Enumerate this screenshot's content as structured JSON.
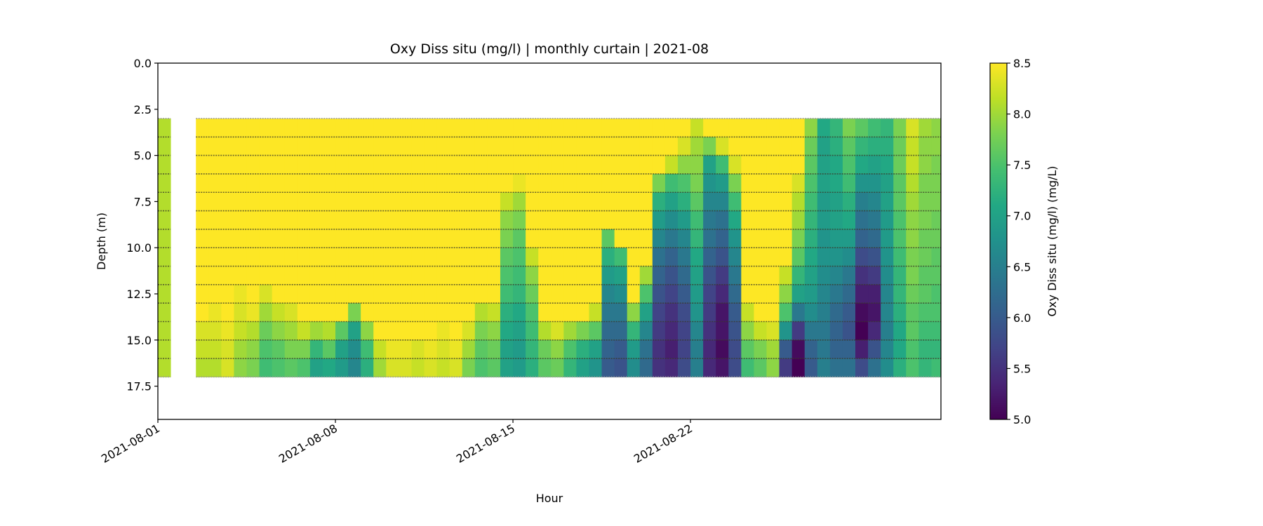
{
  "chart_data": {
    "type": "heatmap",
    "title": "Oxy Diss situ (mg/l) | monthly curtain | 2021-08",
    "xlabel": "Hour",
    "ylabel": "Depth (m)",
    "colorbar_label": "Oxy Diss situ (mg/l) (mg/L)",
    "colormap": "viridis",
    "clim": [
      5.0,
      8.5
    ],
    "xlim": [
      "2021-08-01 00:00",
      "2021-08-31 21:00"
    ],
    "ylim": [
      19.3,
      0.0
    ],
    "y_inverted": true,
    "grid": false,
    "x_ticks": [
      "2021-08-01",
      "2021-08-08",
      "2021-08-15",
      "2021-08-22"
    ],
    "y_ticks": [
      "0.0",
      "2.5",
      "5.0",
      "7.5",
      "10.0",
      "12.5",
      "15.0",
      "17.5"
    ],
    "colorbar_ticks": [
      "5.0",
      "5.5",
      "6.0",
      "6.5",
      "7.0",
      "7.5",
      "8.0",
      "8.5"
    ],
    "sample_depths": [
      3,
      4,
      5,
      6,
      7,
      8,
      9,
      10,
      11,
      12,
      13,
      14,
      15,
      16,
      17
    ],
    "depths": [
      3,
      4,
      5,
      6,
      7,
      8,
      9,
      10,
      11,
      12,
      13,
      14,
      15,
      16
    ],
    "times": [
      "2021-08-01 00:00",
      "2021-08-01 12:00",
      "2021-08-02 00:00",
      "2021-08-02 12:00",
      "2021-08-03 00:00",
      "2021-08-03 12:00",
      "2021-08-04 00:00",
      "2021-08-04 12:00",
      "2021-08-05 00:00",
      "2021-08-05 12:00",
      "2021-08-06 00:00",
      "2021-08-06 12:00",
      "2021-08-07 00:00",
      "2021-08-07 12:00",
      "2021-08-08 00:00",
      "2021-08-08 12:00",
      "2021-08-09 00:00",
      "2021-08-09 12:00",
      "2021-08-10 00:00",
      "2021-08-10 12:00",
      "2021-08-11 00:00",
      "2021-08-11 12:00",
      "2021-08-12 00:00",
      "2021-08-12 12:00",
      "2021-08-13 00:00",
      "2021-08-13 12:00",
      "2021-08-14 00:00",
      "2021-08-14 12:00",
      "2021-08-15 00:00",
      "2021-08-15 12:00",
      "2021-08-16 00:00",
      "2021-08-16 12:00",
      "2021-08-17 00:00",
      "2021-08-17 12:00",
      "2021-08-18 00:00",
      "2021-08-18 12:00",
      "2021-08-19 00:00",
      "2021-08-19 12:00",
      "2021-08-20 00:00",
      "2021-08-20 12:00",
      "2021-08-21 00:00",
      "2021-08-21 12:00",
      "2021-08-22 00:00",
      "2021-08-22 12:00",
      "2021-08-23 00:00",
      "2021-08-23 12:00",
      "2021-08-24 00:00",
      "2021-08-24 12:00",
      "2021-08-25 00:00",
      "2021-08-25 12:00",
      "2021-08-26 00:00",
      "2021-08-26 12:00",
      "2021-08-27 00:00",
      "2021-08-27 12:00",
      "2021-08-28 00:00",
      "2021-08-28 12:00",
      "2021-08-29 00:00",
      "2021-08-29 12:00",
      "2021-08-30 00:00",
      "2021-08-30 12:00",
      "2021-08-31 00:00",
      "2021-08-31 12:00"
    ],
    "values": [
      [
        8.1,
        8.1,
        8.1,
        8.1,
        8.1,
        8.1,
        8.1,
        8.1,
        8.1,
        8.1,
        8.1,
        8.1,
        8.1,
        8.1
      ],
      null,
      null,
      [
        8.5,
        8.5,
        8.5,
        8.5,
        8.5,
        8.5,
        8.5,
        8.5,
        8.5,
        8.5,
        8.5,
        8.3,
        8.2,
        8.1
      ],
      [
        8.5,
        8.5,
        8.5,
        8.5,
        8.5,
        8.5,
        8.5,
        8.5,
        8.5,
        8.5,
        8.4,
        8.3,
        8.2,
        8.1
      ],
      [
        8.5,
        8.5,
        8.5,
        8.5,
        8.5,
        8.5,
        8.5,
        8.5,
        8.5,
        8.5,
        8.5,
        8.4,
        8.3,
        8.3
      ],
      [
        8.5,
        8.5,
        8.5,
        8.5,
        8.5,
        8.5,
        8.5,
        8.5,
        8.5,
        8.4,
        8.3,
        8.2,
        8.0,
        7.9
      ],
      [
        8.5,
        8.5,
        8.5,
        8.5,
        8.5,
        8.5,
        8.5,
        8.5,
        8.5,
        8.5,
        8.4,
        8.1,
        7.9,
        7.8
      ],
      [
        8.5,
        8.5,
        8.5,
        8.5,
        8.5,
        8.5,
        8.5,
        8.5,
        8.5,
        8.3,
        8.0,
        7.7,
        7.5,
        7.4
      ],
      [
        8.5,
        8.5,
        8.5,
        8.5,
        8.5,
        8.5,
        8.5,
        8.5,
        8.5,
        8.5,
        8.2,
        7.9,
        7.6,
        7.5
      ],
      [
        8.5,
        8.5,
        8.5,
        8.5,
        8.5,
        8.5,
        8.5,
        8.5,
        8.5,
        8.5,
        8.3,
        8.0,
        7.8,
        7.6
      ],
      [
        8.5,
        8.5,
        8.5,
        8.5,
        8.5,
        8.5,
        8.5,
        8.5,
        8.5,
        8.5,
        8.5,
        8.2,
        7.8,
        7.5
      ],
      [
        8.5,
        8.5,
        8.5,
        8.5,
        8.5,
        8.5,
        8.5,
        8.5,
        8.5,
        8.5,
        8.5,
        8.0,
        7.3,
        7.0
      ],
      [
        8.5,
        8.5,
        8.5,
        8.5,
        8.5,
        8.5,
        8.5,
        8.5,
        8.5,
        8.5,
        8.5,
        8.1,
        7.6,
        7.1
      ],
      [
        8.5,
        8.5,
        8.5,
        8.5,
        8.5,
        8.5,
        8.5,
        8.5,
        8.5,
        8.5,
        8.5,
        7.6,
        7.0,
        6.9
      ],
      [
        8.5,
        8.5,
        8.5,
        8.5,
        8.5,
        8.5,
        8.5,
        8.5,
        8.5,
        8.5,
        7.8,
        7.0,
        6.7,
        6.6
      ],
      [
        8.5,
        8.5,
        8.5,
        8.5,
        8.5,
        8.5,
        8.5,
        8.5,
        8.5,
        8.5,
        8.5,
        7.9,
        7.4,
        7.2
      ],
      [
        8.5,
        8.5,
        8.5,
        8.5,
        8.5,
        8.5,
        8.5,
        8.5,
        8.5,
        8.5,
        8.5,
        8.5,
        8.2,
        8.0
      ],
      [
        8.5,
        8.5,
        8.5,
        8.5,
        8.5,
        8.5,
        8.5,
        8.5,
        8.5,
        8.5,
        8.5,
        8.5,
        8.4,
        8.3
      ],
      [
        8.5,
        8.5,
        8.5,
        8.5,
        8.5,
        8.5,
        8.5,
        8.5,
        8.5,
        8.5,
        8.5,
        8.5,
        8.4,
        8.3
      ],
      [
        8.5,
        8.5,
        8.5,
        8.5,
        8.5,
        8.5,
        8.5,
        8.5,
        8.5,
        8.5,
        8.5,
        8.5,
        8.3,
        8.2
      ],
      [
        8.5,
        8.5,
        8.5,
        8.5,
        8.5,
        8.5,
        8.5,
        8.5,
        8.5,
        8.5,
        8.5,
        8.5,
        8.4,
        8.3
      ],
      [
        8.5,
        8.5,
        8.5,
        8.5,
        8.5,
        8.5,
        8.5,
        8.5,
        8.5,
        8.5,
        8.5,
        8.4,
        8.3,
        8.2
      ],
      [
        8.5,
        8.5,
        8.5,
        8.5,
        8.5,
        8.5,
        8.5,
        8.5,
        8.5,
        8.5,
        8.5,
        8.5,
        8.4,
        8.3
      ],
      [
        8.5,
        8.5,
        8.5,
        8.5,
        8.5,
        8.5,
        8.5,
        8.5,
        8.5,
        8.5,
        8.5,
        8.3,
        8.0,
        7.8
      ],
      [
        8.5,
        8.5,
        8.5,
        8.5,
        8.5,
        8.5,
        8.5,
        8.5,
        8.5,
        8.5,
        8.1,
        7.8,
        7.6,
        7.5
      ],
      [
        8.5,
        8.5,
        8.5,
        8.5,
        8.5,
        8.5,
        8.5,
        8.5,
        8.5,
        8.5,
        8.2,
        7.9,
        7.7,
        7.6
      ],
      [
        8.5,
        8.5,
        8.5,
        8.5,
        8.2,
        7.9,
        7.8,
        7.6,
        7.5,
        7.4,
        7.2,
        7.1,
        7.0,
        7.0
      ],
      [
        8.5,
        8.5,
        8.5,
        8.4,
        8.0,
        7.8,
        7.6,
        7.5,
        7.4,
        7.3,
        7.1,
        7.0,
        6.9,
        6.9
      ],
      [
        8.5,
        8.5,
        8.5,
        8.5,
        8.5,
        8.5,
        8.5,
        8.2,
        7.9,
        7.7,
        7.5,
        7.4,
        7.3,
        7.2
      ],
      [
        8.5,
        8.5,
        8.5,
        8.5,
        8.5,
        8.5,
        8.5,
        8.5,
        8.5,
        8.5,
        8.5,
        8.1,
        7.7,
        7.6
      ],
      [
        8.5,
        8.5,
        8.5,
        8.5,
        8.5,
        8.5,
        8.5,
        8.5,
        8.5,
        8.5,
        8.5,
        8.3,
        7.9,
        7.7
      ],
      [
        8.5,
        8.5,
        8.5,
        8.5,
        8.5,
        8.5,
        8.5,
        8.5,
        8.5,
        8.5,
        8.5,
        8.0,
        7.5,
        7.3
      ],
      [
        8.5,
        8.5,
        8.5,
        8.5,
        8.5,
        8.5,
        8.5,
        8.5,
        8.5,
        8.5,
        8.5,
        7.8,
        7.2,
        7.0
      ],
      [
        8.5,
        8.5,
        8.5,
        8.5,
        8.5,
        8.5,
        8.5,
        8.5,
        8.5,
        8.5,
        8.2,
        7.6,
        7.0,
        6.8
      ],
      [
        8.5,
        8.5,
        8.5,
        8.5,
        8.5,
        8.5,
        7.6,
        7.2,
        6.9,
        6.6,
        6.4,
        6.2,
        6.1,
        6.0
      ],
      [
        8.5,
        8.5,
        8.5,
        8.5,
        8.5,
        8.5,
        8.5,
        7.4,
        7.0,
        6.7,
        6.4,
        6.2,
        6.0,
        5.9
      ],
      [
        8.5,
        8.5,
        8.5,
        8.5,
        8.5,
        8.5,
        8.5,
        8.5,
        8.5,
        8.5,
        7.9,
        7.3,
        6.9,
        6.7
      ],
      [
        8.5,
        8.5,
        8.5,
        8.5,
        8.5,
        8.5,
        8.5,
        8.5,
        8.0,
        7.5,
        7.0,
        6.6,
        6.3,
        6.2
      ],
      [
        8.5,
        8.5,
        8.5,
        7.8,
        7.2,
        6.9,
        6.6,
        6.3,
        6.1,
        5.9,
        5.7,
        5.6,
        5.5,
        5.5
      ],
      [
        8.5,
        8.5,
        8.2,
        7.4,
        7.0,
        6.7,
        6.4,
        6.1,
        5.9,
        5.7,
        5.5,
        5.4,
        5.3,
        5.4
      ],
      [
        8.5,
        8.3,
        7.9,
        7.5,
        7.2,
        6.9,
        6.6,
        6.4,
        6.2,
        6.0,
        5.8,
        5.7,
        5.7,
        5.8
      ],
      [
        8.2,
        8.0,
        7.9,
        7.8,
        7.6,
        7.4,
        7.3,
        7.1,
        7.0,
        6.9,
        6.8,
        6.6,
        6.5,
        6.5
      ],
      [
        8.5,
        7.8,
        7.0,
        6.8,
        6.6,
        6.4,
        6.3,
        6.1,
        5.9,
        5.7,
        5.6,
        5.5,
        5.4,
        5.4
      ],
      [
        8.5,
        8.3,
        7.4,
        6.9,
        6.6,
        6.3,
        6.1,
        5.9,
        5.6,
        5.4,
        5.2,
        5.2,
        5.1,
        5.2
      ],
      [
        8.5,
        8.5,
        8.3,
        7.8,
        7.4,
        7.1,
        6.8,
        6.6,
        6.4,
        6.2,
        6.0,
        5.9,
        5.8,
        5.8
      ],
      [
        8.5,
        8.5,
        8.5,
        8.5,
        8.5,
        8.5,
        8.5,
        8.5,
        8.5,
        8.5,
        8.2,
        7.9,
        7.6,
        7.4
      ],
      [
        8.5,
        8.5,
        8.5,
        8.5,
        8.5,
        8.5,
        8.5,
        8.5,
        8.5,
        8.5,
        8.5,
        8.2,
        7.8,
        7.6
      ],
      [
        8.5,
        8.5,
        8.5,
        8.5,
        8.5,
        8.5,
        8.5,
        8.5,
        8.5,
        8.5,
        8.5,
        8.3,
        8.0,
        7.9
      ],
      [
        8.5,
        8.5,
        8.5,
        8.5,
        8.5,
        8.5,
        8.5,
        8.5,
        8.2,
        7.9,
        7.5,
        6.8,
        6.0,
        5.6
      ],
      [
        8.5,
        8.5,
        8.5,
        8.3,
        8.1,
        8.0,
        7.8,
        7.6,
        7.3,
        7.0,
        6.4,
        5.6,
        5.1,
        5.0
      ],
      [
        7.9,
        7.7,
        7.6,
        7.5,
        7.4,
        7.3,
        7.2,
        7.1,
        7.0,
        6.9,
        6.7,
        6.4,
        6.1,
        6.0
      ],
      [
        7.1,
        7.0,
        7.0,
        7.0,
        6.9,
        6.9,
        6.8,
        6.8,
        6.7,
        6.6,
        6.5,
        6.4,
        6.4,
        6.5
      ],
      [
        7.3,
        7.2,
        7.1,
        7.1,
        7.0,
        7.0,
        6.9,
        6.8,
        6.6,
        6.4,
        6.2,
        6.1,
        6.1,
        6.3
      ],
      [
        7.8,
        7.6,
        7.5,
        7.4,
        7.2,
        7.1,
        6.9,
        6.7,
        6.4,
        6.2,
        6.0,
        5.9,
        6.1,
        6.3
      ],
      [
        7.6,
        7.3,
        7.1,
        6.8,
        6.5,
        6.3,
        6.1,
        5.8,
        5.5,
        5.3,
        5.1,
        5.0,
        5.3,
        5.8
      ],
      [
        7.4,
        7.2,
        7.0,
        6.8,
        6.6,
        6.4,
        6.2,
        5.9,
        5.6,
        5.3,
        5.2,
        5.4,
        5.9,
        6.3
      ],
      [
        7.3,
        7.2,
        7.1,
        7.0,
        7.0,
        6.9,
        6.9,
        6.8,
        6.7,
        6.6,
        6.6,
        6.5,
        6.6,
        6.7
      ],
      [
        7.8,
        7.7,
        7.7,
        7.6,
        7.6,
        7.5,
        7.5,
        7.4,
        7.3,
        7.3,
        7.2,
        7.1,
        7.1,
        7.2
      ],
      [
        8.3,
        8.2,
        8.2,
        8.1,
        8.0,
        7.9,
        7.9,
        7.8,
        7.8,
        7.7,
        7.6,
        7.6,
        7.5,
        7.5
      ],
      [
        8.0,
        7.9,
        7.9,
        7.8,
        7.8,
        7.8,
        7.7,
        7.7,
        7.6,
        7.6,
        7.5,
        7.4,
        7.3,
        7.3
      ],
      [
        7.9,
        7.9,
        7.8,
        7.8,
        7.8,
        7.7,
        7.7,
        7.6,
        7.6,
        7.5,
        7.5,
        7.4,
        7.3,
        7.4
      ]
    ]
  }
}
